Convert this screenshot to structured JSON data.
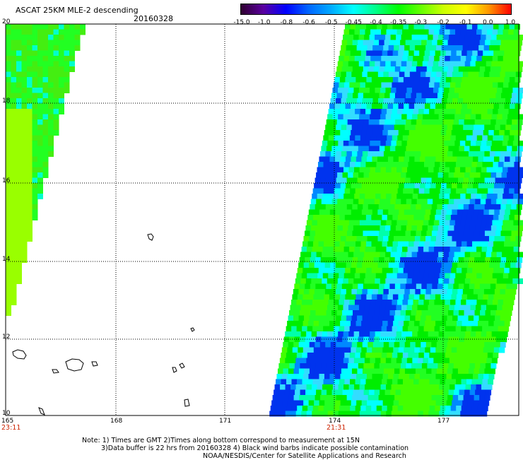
{
  "header": {
    "title": "ASCAT 25KM MLE-2 descending",
    "date": "20160328"
  },
  "colorbar": {
    "labels": [
      "-15.0",
      "-1.0",
      "-0.8",
      "-0.6",
      "-0.5",
      "-0.45",
      "-0.4",
      "-0.35",
      "-0.3",
      "-0.2",
      "-0.1",
      "0.0",
      "1.0"
    ],
    "colors": [
      "#300030",
      "#5a00a0",
      "#0000ff",
      "#0066ff",
      "#00aaff",
      "#00ffff",
      "#00ff88",
      "#00ff00",
      "#66ff00",
      "#ccff00",
      "#ffff00",
      "#ff9900",
      "#ff0000"
    ]
  },
  "map": {
    "lat_labels": [
      "20",
      "18",
      "16",
      "14",
      "12",
      "10"
    ],
    "lon_labels": [
      "165",
      "168",
      "171",
      "174",
      "177"
    ],
    "times": [
      "23:11",
      "21:31"
    ]
  },
  "notes": {
    "line1": "Note: 1) Times are GMT 2)Times along bottom correspond to measurement at 15N",
    "line2": "3)Data buffer is 22 hrs from 20160328 4) Black wind barbs indicate possible contamination",
    "line3": "NOAA/NESDIS/Center for Satellite Applications and Research"
  }
}
